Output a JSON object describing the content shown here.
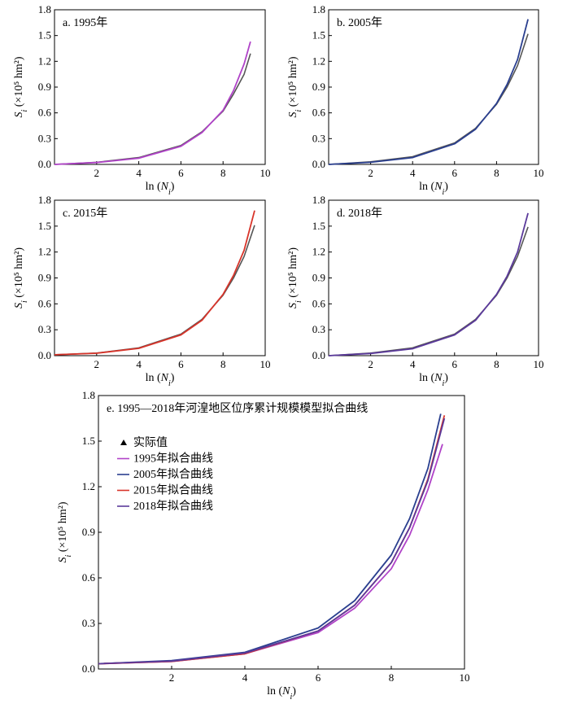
{
  "chart_data": [
    {
      "type": "line",
      "title": "a. 1995年",
      "xlabel": "ln (Ni)",
      "ylabel": "Si (×10⁵ hm²)",
      "xlim": [
        0,
        10
      ],
      "ylim": [
        0,
        1.8
      ],
      "xticks": [
        "2",
        "4",
        "6",
        "8",
        "10"
      ],
      "yticks": [
        "0.0",
        "0.3",
        "0.6",
        "0.9",
        "1.2",
        "1.5",
        "1.8"
      ],
      "legend": "none",
      "series": [
        {
          "color": "#555555",
          "x": [
            0,
            2,
            4,
            6,
            7,
            8,
            8.5,
            9,
            9.3
          ],
          "values": [
            0,
            0.025,
            0.08,
            0.22,
            0.38,
            0.62,
            0.82,
            1.05,
            1.29
          ]
        },
        {
          "color": "#b043c8",
          "x": [
            0,
            2,
            4,
            6,
            7,
            8,
            8.5,
            9,
            9.3
          ],
          "values": [
            0,
            0.022,
            0.072,
            0.21,
            0.37,
            0.63,
            0.86,
            1.17,
            1.43
          ]
        }
      ]
    },
    {
      "type": "line",
      "title": "b. 2005年",
      "xlabel": "ln (Ni)",
      "ylabel": "Si (×10⁵ hm²)",
      "xlim": [
        0,
        10
      ],
      "ylim": [
        0,
        1.8
      ],
      "xticks": [
        "2",
        "4",
        "6",
        "8",
        "10"
      ],
      "yticks": [
        "0.0",
        "0.3",
        "0.6",
        "0.9",
        "1.2",
        "1.5",
        "1.8"
      ],
      "legend": "none",
      "series": [
        {
          "color": "#555555",
          "x": [
            0,
            2,
            4,
            6,
            7,
            8,
            8.5,
            9,
            9.5
          ],
          "values": [
            0,
            0.03,
            0.09,
            0.25,
            0.42,
            0.7,
            0.9,
            1.15,
            1.52
          ]
        },
        {
          "color": "#2a3f8f",
          "x": [
            0,
            2,
            4,
            6,
            7,
            8,
            8.5,
            9,
            9.5
          ],
          "values": [
            0,
            0.025,
            0.08,
            0.24,
            0.41,
            0.71,
            0.93,
            1.22,
            1.69
          ]
        }
      ]
    },
    {
      "type": "line",
      "title": "c. 2015年",
      "xlabel": "ln (Ni)",
      "ylabel": "Si (×10⁵ hm²)",
      "xlim": [
        0,
        10
      ],
      "ylim": [
        0,
        1.8
      ],
      "xticks": [
        "2",
        "4",
        "6",
        "8",
        "10"
      ],
      "yticks": [
        "0.0",
        "0.3",
        "0.6",
        "0.9",
        "1.2",
        "1.5",
        "1.8"
      ],
      "legend": "none",
      "series": [
        {
          "color": "#555555",
          "x": [
            0,
            2,
            4,
            6,
            7,
            8,
            8.5,
            9,
            9.5
          ],
          "values": [
            0.01,
            0.03,
            0.09,
            0.25,
            0.42,
            0.7,
            0.9,
            1.15,
            1.51
          ]
        },
        {
          "color": "#d8342a",
          "x": [
            0,
            2,
            4,
            6,
            7,
            8,
            8.5,
            9,
            9.5
          ],
          "values": [
            0.01,
            0.028,
            0.085,
            0.24,
            0.41,
            0.71,
            0.93,
            1.22,
            1.68
          ]
        }
      ]
    },
    {
      "type": "line",
      "title": "d. 2018年",
      "xlabel": "ln (Ni)",
      "ylabel": "Si (×10⁵ hm²)",
      "xlim": [
        0,
        10
      ],
      "ylim": [
        0,
        1.8
      ],
      "xticks": [
        "2",
        "4",
        "6",
        "8",
        "10"
      ],
      "yticks": [
        "0.0",
        "0.3",
        "0.6",
        "0.9",
        "1.2",
        "1.5",
        "1.8"
      ],
      "legend": "none",
      "series": [
        {
          "color": "#555555",
          "x": [
            0,
            2,
            4,
            6,
            7,
            8,
            8.5,
            9,
            9.5
          ],
          "values": [
            0,
            0.03,
            0.09,
            0.25,
            0.42,
            0.7,
            0.9,
            1.15,
            1.49
          ]
        },
        {
          "color": "#5b3a9b",
          "x": [
            0,
            2,
            4,
            6,
            7,
            8,
            8.5,
            9,
            9.5
          ],
          "values": [
            0,
            0.025,
            0.08,
            0.24,
            0.41,
            0.71,
            0.92,
            1.2,
            1.65
          ]
        }
      ]
    },
    {
      "type": "line",
      "title": "e. 1995—2018年河湟地区位序累计规模模型拟合曲线",
      "xlabel": "ln (Ni)",
      "ylabel": "Si (×10⁵ hm²)",
      "xlim": [
        0,
        10
      ],
      "ylim": [
        0,
        1.8
      ],
      "xticks": [
        "2",
        "4",
        "6",
        "8",
        "10"
      ],
      "yticks": [
        "0.0",
        "0.3",
        "0.6",
        "0.9",
        "1.2",
        "1.5",
        "1.8"
      ],
      "legend": "top-left",
      "legend_entries": [
        {
          "label": "实际值",
          "marker": "triangle",
          "color": "#000000"
        },
        {
          "label": "1995年拟合曲线",
          "color": "#b043c8"
        },
        {
          "label": "2005年拟合曲线",
          "color": "#2a3f8f"
        },
        {
          "label": "2015年拟合曲线",
          "color": "#d8342a"
        },
        {
          "label": "2018年拟合曲线",
          "color": "#5b3a9b"
        }
      ],
      "series": [
        {
          "color": "#b043c8",
          "x": [
            0,
            2,
            4,
            6,
            7,
            8,
            8.5,
            9,
            9.4
          ],
          "values": [
            0.035,
            0.05,
            0.1,
            0.24,
            0.4,
            0.66,
            0.88,
            1.18,
            1.48
          ]
        },
        {
          "color": "#2a3f8f",
          "x": [
            0,
            2,
            4,
            6,
            7,
            8,
            8.5,
            9,
            9.35
          ],
          "values": [
            0.035,
            0.055,
            0.11,
            0.27,
            0.45,
            0.75,
            0.99,
            1.32,
            1.68
          ]
        },
        {
          "color": "#d8342a",
          "x": [
            0,
            2,
            4,
            6,
            7,
            8,
            8.5,
            9,
            9.45
          ],
          "values": [
            0.035,
            0.05,
            0.1,
            0.25,
            0.42,
            0.7,
            0.93,
            1.25,
            1.67
          ]
        },
        {
          "color": "#5b3a9b",
          "x": [
            0,
            2,
            4,
            6,
            7,
            8,
            8.5,
            9,
            9.45
          ],
          "values": [
            0.035,
            0.052,
            0.105,
            0.25,
            0.42,
            0.7,
            0.93,
            1.24,
            1.65
          ]
        }
      ]
    }
  ]
}
